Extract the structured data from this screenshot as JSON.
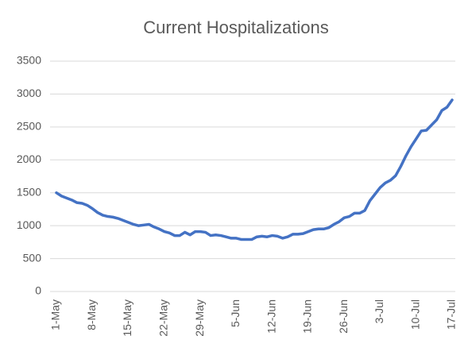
{
  "chart_data": {
    "type": "line",
    "title": "Current Hospitalizations",
    "categories": [
      "1-May",
      null,
      null,
      null,
      null,
      null,
      null,
      "8-May",
      null,
      null,
      null,
      null,
      null,
      null,
      "15-May",
      null,
      null,
      null,
      null,
      null,
      null,
      "22-May",
      null,
      null,
      null,
      null,
      null,
      null,
      "29-May",
      null,
      null,
      null,
      null,
      null,
      null,
      "5-Jun",
      null,
      null,
      null,
      null,
      null,
      null,
      "12-Jun",
      null,
      null,
      null,
      null,
      null,
      null,
      "19-Jun",
      null,
      null,
      null,
      null,
      null,
      null,
      "26-Jun",
      null,
      null,
      null,
      null,
      null,
      null,
      "3-Jul",
      null,
      null,
      null,
      null,
      null,
      null,
      "10-Jul",
      null,
      null,
      null,
      null,
      null,
      null,
      "17-Jul"
    ],
    "series": [
      {
        "color": "#4472c4",
        "values": [
          1500,
          1450,
          1420,
          1390,
          1350,
          1340,
          1310,
          1260,
          1200,
          1160,
          1140,
          1130,
          1110,
          1080,
          1050,
          1020,
          1000,
          1010,
          1020,
          980,
          950,
          910,
          890,
          850,
          850,
          900,
          860,
          910,
          910,
          900,
          850,
          860,
          850,
          830,
          810,
          810,
          790,
          790,
          790,
          830,
          840,
          830,
          850,
          840,
          810,
          830,
          870,
          870,
          880,
          910,
          940,
          950,
          950,
          970,
          1020,
          1060,
          1120,
          1140,
          1190,
          1190,
          1230,
          1380,
          1480,
          1580,
          1650,
          1690,
          1760,
          1900,
          2060,
          2200,
          2320,
          2440,
          2450,
          2530,
          2610,
          2750,
          2800,
          2910
        ]
      }
    ],
    "ylim": [
      0,
      3500
    ],
    "yticks": [
      0,
      500,
      1000,
      1500,
      2000,
      2500,
      3000,
      3500
    ],
    "grid": true
  }
}
